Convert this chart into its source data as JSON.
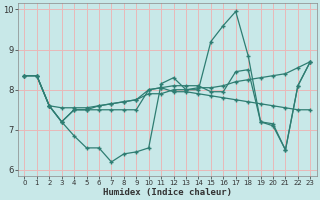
{
  "xlabel": "Humidex (Indice chaleur)",
  "xlim": [
    -0.5,
    23.5
  ],
  "ylim": [
    5.85,
    10.15
  ],
  "yticks": [
    6,
    7,
    8,
    9,
    10
  ],
  "xticks": [
    0,
    1,
    2,
    3,
    4,
    5,
    6,
    7,
    8,
    9,
    10,
    11,
    12,
    13,
    14,
    15,
    16,
    17,
    18,
    19,
    20,
    21,
    22,
    23
  ],
  "bg_color": "#c8e8e8",
  "grid_color": "#e8b8b8",
  "line_color": "#2e7d72",
  "figsize": [
    3.2,
    2.0
  ],
  "dpi": 100,
  "series": [
    [
      8.35,
      8.35,
      7.6,
      7.2,
      6.85,
      6.55,
      6.55,
      6.2,
      6.4,
      6.45,
      6.55,
      8.15,
      8.3,
      8.0,
      8.0,
      9.2,
      9.6,
      9.95,
      8.85,
      7.2,
      7.1,
      6.5,
      8.1,
      8.7
    ],
    [
      8.35,
      8.35,
      7.6,
      7.55,
      7.55,
      7.55,
      7.6,
      7.65,
      7.7,
      7.75,
      7.9,
      7.9,
      8.0,
      8.0,
      8.05,
      8.05,
      8.1,
      8.2,
      8.25,
      8.3,
      8.35,
      8.4,
      8.55,
      8.7
    ],
    [
      8.35,
      8.35,
      7.6,
      7.2,
      7.5,
      7.5,
      7.5,
      7.5,
      7.5,
      7.5,
      8.0,
      8.05,
      7.95,
      7.95,
      7.9,
      7.85,
      7.8,
      7.75,
      7.7,
      7.65,
      7.6,
      7.55,
      7.5,
      7.5
    ],
    [
      8.35,
      8.35,
      7.6,
      7.2,
      7.5,
      7.5,
      7.6,
      7.65,
      7.7,
      7.75,
      8.0,
      8.05,
      8.1,
      8.1,
      8.1,
      7.95,
      7.95,
      8.45,
      8.5,
      7.2,
      7.15,
      6.5,
      8.1,
      8.7
    ]
  ]
}
